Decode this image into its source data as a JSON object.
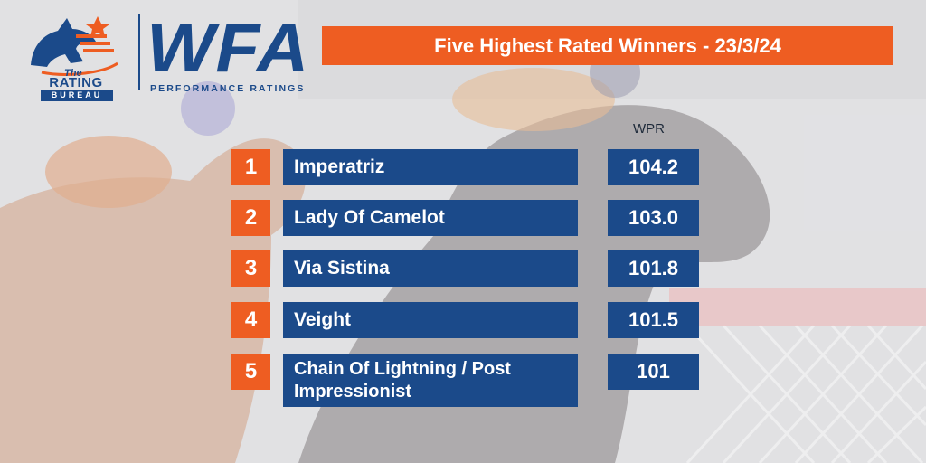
{
  "logo": {
    "the": "The",
    "rating": "RATING",
    "bureau": "BUREAU",
    "wfa": "WFA",
    "subtitle": "PERFORMANCE RATINGS"
  },
  "banner": {
    "title": "Five Highest Rated Winners - 23/3/24"
  },
  "table": {
    "rating_header": "WPR",
    "rows": [
      {
        "rank": "1",
        "name": "Imperatriz",
        "rating": "104.2"
      },
      {
        "rank": "2",
        "name": "Lady Of Camelot",
        "rating": "103.0"
      },
      {
        "rank": "3",
        "name": "Via Sistina",
        "rating": "101.8"
      },
      {
        "rank": "4",
        "name": "Veight",
        "rating": "101.5"
      },
      {
        "rank": "5",
        "name": "Chain Of Lightning / Post Impressionist",
        "rating": "101"
      }
    ]
  },
  "colors": {
    "orange": "#ee5d22",
    "navy": "#1b4a8a"
  }
}
